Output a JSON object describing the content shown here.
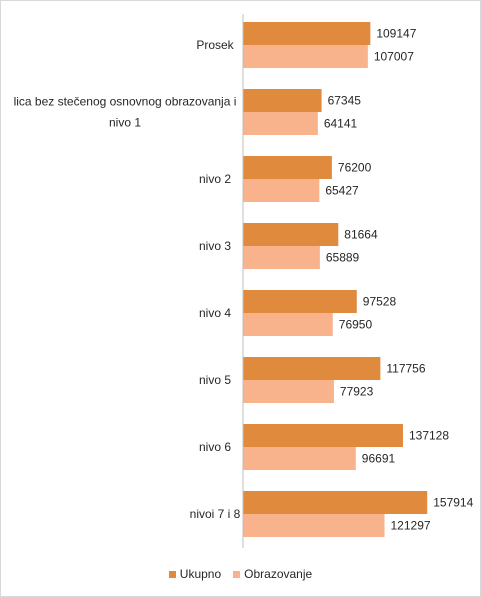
{
  "chart_data": {
    "type": "bar",
    "orientation": "horizontal",
    "categories": [
      [
        "Prosek"
      ],
      [
        "lica bez stečenog osnovnog obrazovanja i",
        "nivo 1"
      ],
      [
        "nivo 2"
      ],
      [
        "nivo 3"
      ],
      [
        "nivo 4"
      ],
      [
        "nivo 5"
      ],
      [
        "nivo 6"
      ],
      [
        "nivoi 7 i 8"
      ]
    ],
    "series": [
      {
        "name": "Ukupno",
        "color": "#E08A3E",
        "values": [
          109147,
          67345,
          76200,
          81664,
          97528,
          117756,
          137128,
          157914
        ]
      },
      {
        "name": "Obrazovanje",
        "color": "#F8B28C",
        "values": [
          107007,
          64141,
          65427,
          65889,
          76950,
          77923,
          96691,
          121297
        ]
      }
    ],
    "xlim": [
      0,
      180000
    ],
    "grid": false,
    "legend_position": "bottom"
  }
}
